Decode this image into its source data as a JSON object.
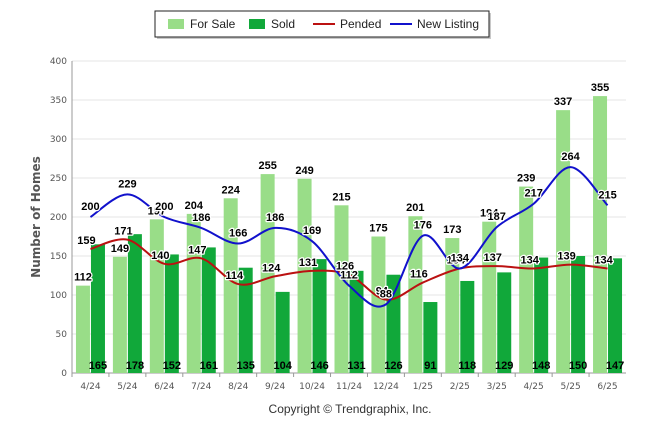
{
  "colors": {
    "for_sale": "#99dd88",
    "sold": "#11a83a",
    "pended": "#bb1111",
    "new_listing": "#1111cc",
    "axis": "#999999",
    "grid": "#e4e4e4"
  },
  "credit": "Copyright © Trendgraphix, Inc.",
  "chart_data": {
    "type": "bar",
    "categories": [
      "4/24",
      "5/24",
      "6/24",
      "7/24",
      "8/24",
      "9/24",
      "10/24",
      "11/24",
      "12/24",
      "1/25",
      "2/25",
      "3/25",
      "4/25",
      "5/25",
      "6/25"
    ],
    "ylabel": "Number of Homes",
    "ylim": [
      0,
      400
    ],
    "yticks": [
      0,
      50,
      100,
      150,
      200,
      250,
      300,
      350,
      400
    ],
    "grid": true,
    "legend_position": "top-center",
    "series": [
      {
        "name": "For Sale",
        "kind": "bar",
        "values": [
          112,
          149,
          197,
          204,
          224,
          255,
          249,
          215,
          175,
          201,
          173,
          194,
          239,
          337,
          355
        ]
      },
      {
        "name": "Sold",
        "kind": "bar",
        "values": [
          165,
          178,
          152,
          161,
          135,
          104,
          146,
          131,
          126,
          91,
          118,
          129,
          148,
          150,
          147
        ]
      },
      {
        "name": "Pended",
        "kind": "line",
        "values": [
          159,
          171,
          140,
          147,
          114,
          124,
          131,
          126,
          94,
          116,
          134,
          137,
          134,
          139,
          134
        ]
      },
      {
        "name": "New Listing",
        "kind": "line",
        "values": [
          200,
          229,
          200,
          186,
          166,
          186,
          169,
          112,
          88,
          176,
          134,
          187,
          217,
          264,
          215
        ]
      }
    ]
  }
}
